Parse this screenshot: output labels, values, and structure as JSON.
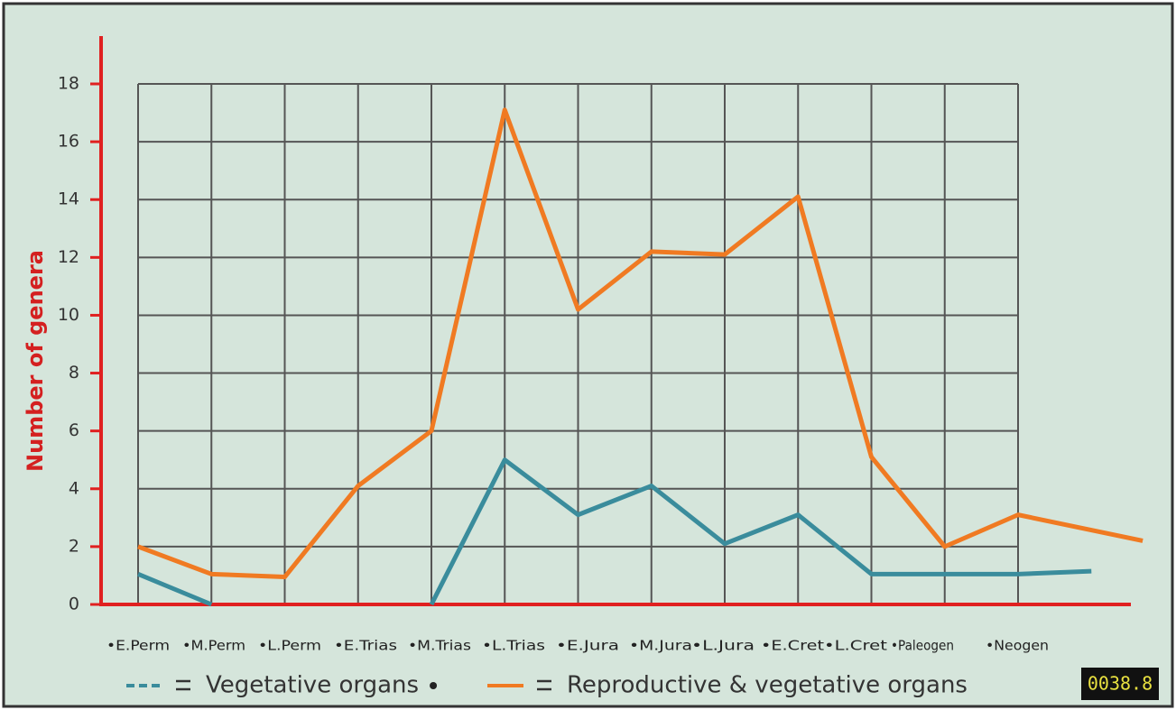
{
  "chart_data": {
    "type": "line",
    "ylabel": "Number of genera",
    "categories": [
      "•E.Perm",
      "•M.Perm",
      "•L.Perm",
      "•E.Trias",
      "•M.Trias",
      "•L.Trias",
      "•E.Jura",
      "•M.Jura",
      "•L.Jura",
      "•E.Cret",
      "•L.Cret",
      "•Paleogen",
      "•Neogen"
    ],
    "xlim": [
      0,
      12
    ],
    "ylim": [
      0,
      18
    ],
    "yticks": [
      0,
      2,
      4,
      6,
      8,
      10,
      12,
      14,
      16,
      18
    ],
    "grid": true,
    "series": [
      {
        "name": "Vegetative organs",
        "color": "#3a8c9c",
        "dashed_legend": true,
        "x": [
          0,
          1,
          2,
          3,
          4,
          5,
          6,
          7,
          8,
          9,
          10,
          11,
          12,
          13
        ],
        "values": [
          1.05,
          0,
          null,
          null,
          0,
          5,
          3.1,
          4.1,
          2.1,
          3.1,
          1.05,
          1.05,
          1.05,
          1.15
        ]
      },
      {
        "name": "Reproductive & vegetative organs",
        "color": "#f07a22",
        "dashed_legend": false,
        "x": [
          0,
          1,
          2,
          3,
          4,
          5,
          6,
          7,
          8,
          9,
          10,
          11,
          12,
          13.7
        ],
        "values": [
          2,
          1.05,
          0.95,
          4.1,
          6,
          17.1,
          10.2,
          12.2,
          12.1,
          14.1,
          5.1,
          2,
          3.1,
          2.2
        ]
      }
    ]
  },
  "timer": "0038.8"
}
